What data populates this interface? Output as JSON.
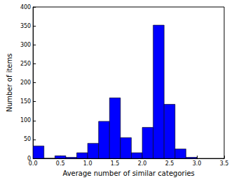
{
  "chart_data": {
    "type": "histogram",
    "xlabel": "Average number of similar categories",
    "ylabel": "Number of items",
    "bins": [
      0.0,
      0.2,
      0.4,
      0.6,
      0.8,
      1.0,
      1.2,
      1.4,
      1.6,
      1.8,
      2.0,
      2.2,
      2.4,
      2.6,
      2.8,
      3.0
    ],
    "values": [
      33,
      0,
      7,
      3,
      15,
      40,
      98,
      160,
      55,
      15,
      82,
      352,
      143,
      25,
      3
    ],
    "color": "#0000ff",
    "xlim": [
      0,
      3.5
    ],
    "xticks": [
      {
        "value": 0,
        "label": "0.0"
      },
      {
        "value": 0.5,
        "label": "0.5"
      },
      {
        "value": 1,
        "label": "1.0"
      },
      {
        "value": 1.5,
        "label": "1.5"
      },
      {
        "value": 2,
        "label": "2.0"
      },
      {
        "value": 2.5,
        "label": "2.5"
      },
      {
        "value": 3,
        "label": "3.0"
      },
      {
        "value": 3.5,
        "label": "3.5"
      }
    ],
    "ylim": [
      0,
      400
    ],
    "yticks": [
      0,
      50,
      100,
      150,
      200,
      250,
      300,
      350,
      400
    ],
    "grid": false
  }
}
